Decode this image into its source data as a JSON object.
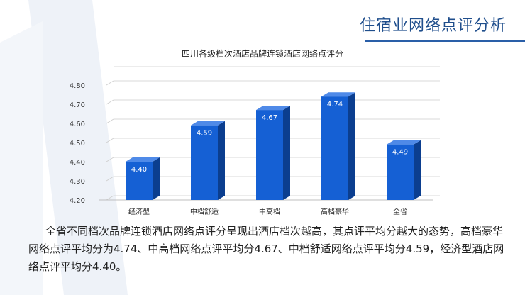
{
  "page": {
    "title": "住宿业网络点评分析",
    "body_text": "全省不同档次品牌连锁酒店网络点评分呈现出酒店档次越高，其点评平均分越大的态势，高档豪华网络点评平均分为4.74、中高档网络点评平均分4.67、中档舒适网络点评平均分4.59，经济型酒店网络点评平均分4.40。"
  },
  "colors": {
    "accent": "#1f4e8c",
    "bar_front": "#1560d4",
    "bar_side": "#0b3e8f",
    "bar_top": "#4f8ae8",
    "deco": "#e9eef6"
  },
  "chart_data": {
    "type": "bar",
    "title": "四川各级档次酒店品牌连锁酒店网络点评分",
    "categories": [
      "经济型",
      "中档舒适",
      "中高档",
      "高档豪华",
      "全省"
    ],
    "values": [
      4.4,
      4.59,
      4.67,
      4.74,
      4.49
    ],
    "value_labels": [
      "4.40",
      "4.59",
      "4.67",
      "4.74",
      "4.49"
    ],
    "ylim": [
      4.2,
      4.8
    ],
    "yticks": [
      4.2,
      4.3,
      4.4,
      4.5,
      4.6,
      4.7,
      4.8
    ],
    "ytick_labels": [
      "4.20",
      "4.30",
      "4.40",
      "4.50",
      "4.60",
      "4.70",
      "4.80"
    ],
    "xlabel": "",
    "ylabel": "",
    "grid": true,
    "style": "3d-column"
  }
}
